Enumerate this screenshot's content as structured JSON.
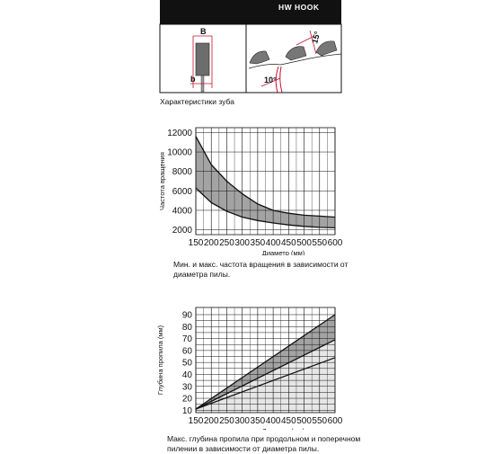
{
  "header": {
    "badge_text": "HW HOOK",
    "dim_b_upper": "B",
    "dim_b_lower": "b",
    "angle_rake": "10°",
    "angle_clearance": "15°",
    "caption": "Характеристики зуба"
  },
  "colors": {
    "dark_band": "#111111",
    "band_fill": "#a3a3a3",
    "light_band": "#e6e6e6",
    "accent_red": "#c8102e"
  },
  "chart_data": [
    {
      "type": "area",
      "ylabel": "Частота вращения",
      "xlabel": "Диаметр (мм)",
      "x_ticks": [
        "150",
        "200",
        "250",
        "300",
        "350",
        "400",
        "450",
        "500",
        "550",
        "600"
      ],
      "y_ticks": [
        "2000",
        "4000",
        "6000",
        "8000",
        "10000",
        "12000"
      ],
      "xlim": [
        150,
        600
      ],
      "ylim": [
        1500,
        12500
      ],
      "grid": true,
      "series": [
        {
          "values_x": [
            150,
            200,
            250,
            300,
            350,
            400,
            450,
            500,
            550,
            600
          ],
          "values_y": [
            11600,
            8700,
            7000,
            5700,
            4650,
            4000,
            3700,
            3500,
            3400,
            3300
          ]
        },
        {
          "values_x": [
            150,
            200,
            250,
            300,
            350,
            400,
            450,
            500,
            550,
            600
          ],
          "values_y": [
            6300,
            4800,
            3900,
            3300,
            2950,
            2700,
            2500,
            2350,
            2250,
            2200
          ]
        }
      ],
      "caption": "Мин. и макс. частота вращения в зависимости от диаметра пилы."
    },
    {
      "type": "line",
      "ylabel": "Глубина пропила (мм)",
      "xlabel": "Диаметр (мм)",
      "x_ticks": [
        "150",
        "200",
        "250",
        "300",
        "350",
        "400",
        "450",
        "500",
        "550",
        "600"
      ],
      "y_ticks": [
        "10",
        "20",
        "30",
        "40",
        "50",
        "60",
        "70",
        "80",
        "90"
      ],
      "xlim": [
        150,
        600
      ],
      "ylim": [
        8,
        96
      ],
      "grid": true,
      "series": [
        {
          "values_x": [
            150,
            600
          ],
          "values_y": [
            11,
            90
          ]
        },
        {
          "values_x": [
            150,
            600
          ],
          "values_y": [
            11,
            69
          ]
        },
        {
          "values_x": [
            150,
            600
          ],
          "values_y": [
            11,
            54
          ]
        }
      ],
      "caption": "Макс. глубина пропила при продольном и поперечном пилении в зависимости от диаметра пилы."
    }
  ]
}
